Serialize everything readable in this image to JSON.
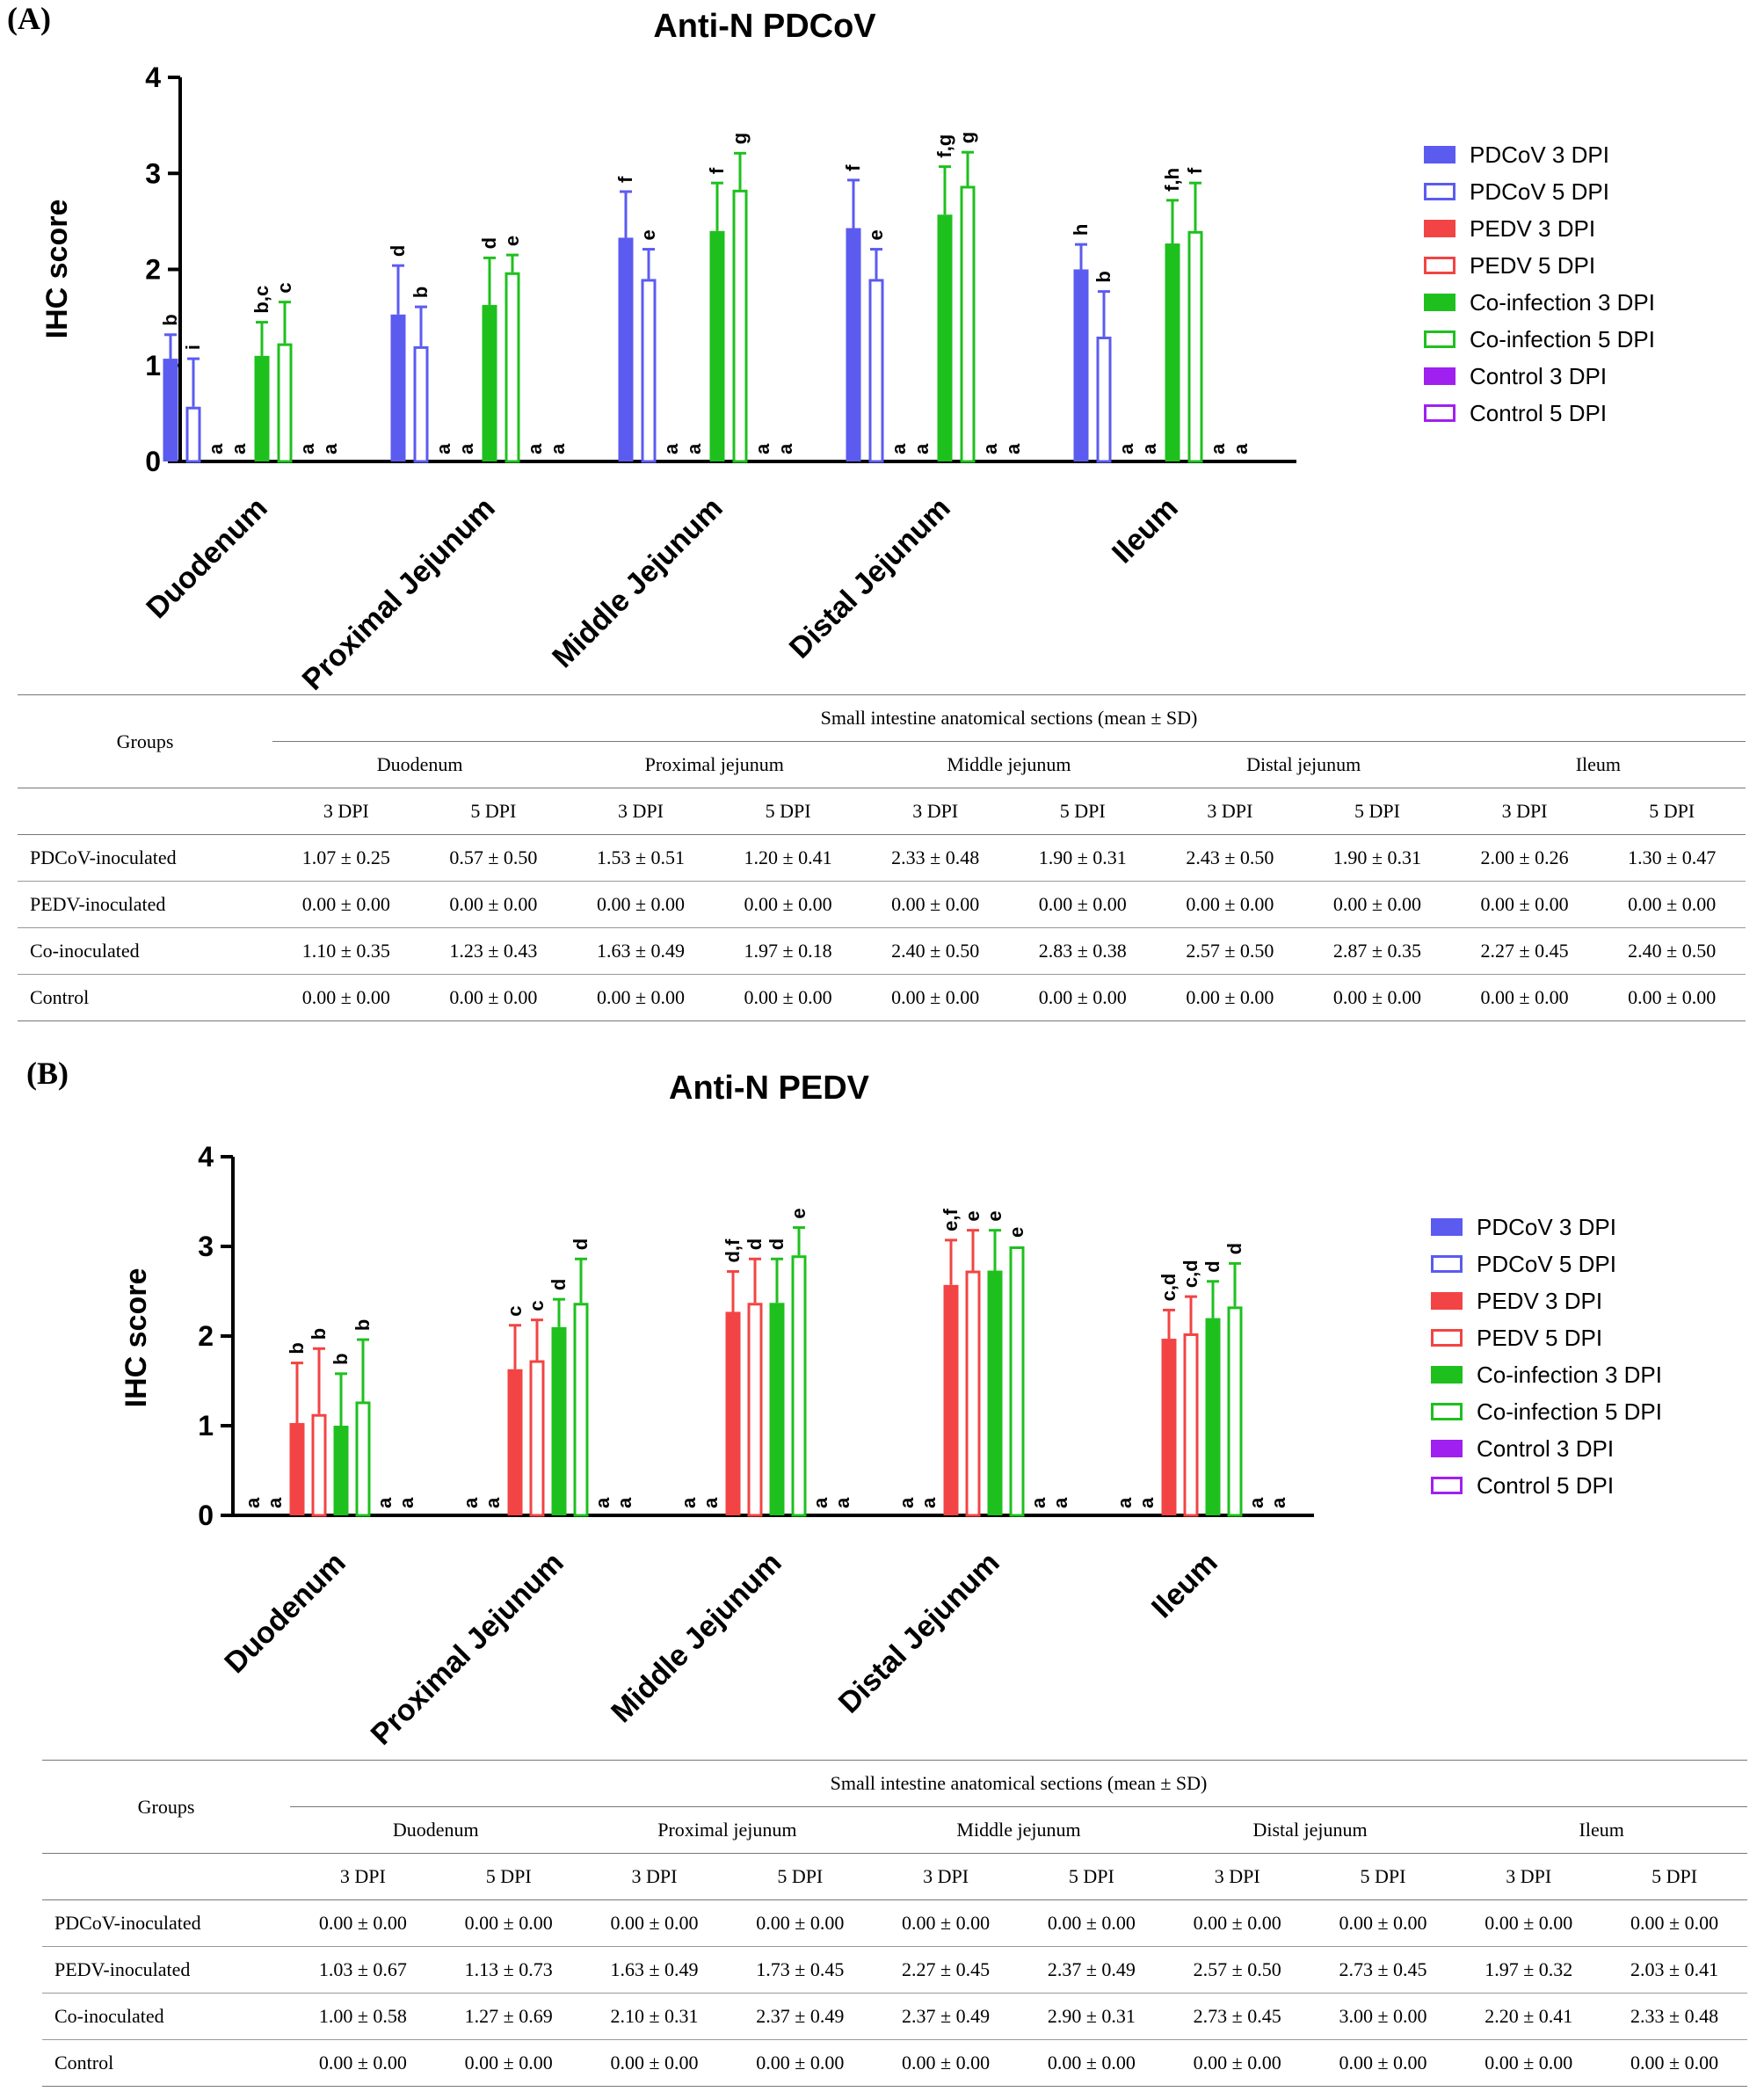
{
  "panels": [
    {
      "label": "(A)",
      "chart_data": {
        "type": "bar",
        "title": "Anti-N PDCoV",
        "ylabel": "IHC score",
        "xlabel": "",
        "ylim": [
          0,
          4
        ],
        "yticks": [
          0,
          1,
          2,
          3,
          4
        ],
        "categories": [
          "Duodenum",
          "Proximal Jejunum",
          "Middle Jejunum",
          "Distal Jejunum",
          "Ileum"
        ],
        "series": [
          {
            "name": "PDCoV 3 DPI",
            "style": "filled",
            "color": "#5b5bf0",
            "values": [
              1.07,
              1.53,
              2.33,
              2.43,
              2.0
            ],
            "sd": [
              0.25,
              0.51,
              0.48,
              0.5,
              0.26
            ],
            "letters": [
              "b",
              "d",
              "f",
              "f",
              "h"
            ]
          },
          {
            "name": "PDCoV 5 DPI",
            "style": "open",
            "color": "#5b5bf0",
            "values": [
              0.57,
              1.2,
              1.9,
              1.9,
              1.3
            ],
            "sd": [
              0.5,
              0.41,
              0.31,
              0.31,
              0.47
            ],
            "letters": [
              "i",
              "b",
              "e",
              "e",
              "b"
            ]
          },
          {
            "name": "PEDV 3 DPI",
            "style": "filled",
            "color": "#f24444",
            "values": [
              0,
              0,
              0,
              0,
              0
            ],
            "sd": [
              0,
              0,
              0,
              0,
              0
            ],
            "letters": [
              "a",
              "a",
              "a",
              "a",
              "a"
            ]
          },
          {
            "name": "PEDV 5 DPI",
            "style": "open",
            "color": "#f24444",
            "values": [
              0,
              0,
              0,
              0,
              0
            ],
            "sd": [
              0,
              0,
              0,
              0,
              0
            ],
            "letters": [
              "a",
              "a",
              "a",
              "a",
              "a"
            ]
          },
          {
            "name": "Co-infection 3 DPI",
            "style": "filled",
            "color": "#1ec01e",
            "values": [
              1.1,
              1.63,
              2.4,
              2.57,
              2.27
            ],
            "sd": [
              0.35,
              0.49,
              0.5,
              0.5,
              0.45
            ],
            "letters": [
              "b,c",
              "d",
              "f",
              "f,g",
              "f,h"
            ]
          },
          {
            "name": "Co-infection 5 DPI",
            "style": "open",
            "color": "#1ec01e",
            "values": [
              1.23,
              1.97,
              2.83,
              2.87,
              2.4
            ],
            "sd": [
              0.43,
              0.18,
              0.38,
              0.35,
              0.5
            ],
            "letters": [
              "c",
              "e",
              "g",
              "g",
              "f"
            ]
          },
          {
            "name": "Control 3 DPI",
            "style": "filled",
            "color": "#a020f0",
            "values": [
              0,
              0,
              0,
              0,
              0
            ],
            "sd": [
              0,
              0,
              0,
              0,
              0
            ],
            "letters": [
              "a",
              "a",
              "a",
              "a",
              "a"
            ]
          },
          {
            "name": "Control 5 DPI",
            "style": "open",
            "color": "#a020f0",
            "values": [
              0,
              0,
              0,
              0,
              0
            ],
            "sd": [
              0,
              0,
              0,
              0,
              0
            ],
            "letters": [
              "a",
              "a",
              "a",
              "a",
              "a"
            ]
          }
        ]
      },
      "table": {
        "header_caption": "Small intestine anatomical sections (mean ± SD)",
        "groups_label": "Groups",
        "sections": [
          "Duodenum",
          "Proximal jejunum",
          "Middle jejunum",
          "Distal jejunum",
          "Ileum"
        ],
        "dpi_labels": [
          "3 DPI",
          "5 DPI",
          "3 DPI",
          "5 DPI",
          "3 DPI",
          "5 DPI",
          "3 DPI",
          "5 DPI",
          "3 DPI",
          "5 DPI"
        ],
        "rows": [
          {
            "group": "PDCoV-inoculated",
            "cells": [
              "1.07 ± 0.25",
              "0.57 ± 0.50",
              "1.53 ± 0.51",
              "1.20 ± 0.41",
              "2.33 ± 0.48",
              "1.90 ± 0.31",
              "2.43 ± 0.50",
              "1.90 ± 0.31",
              "2.00 ± 0.26",
              "1.30 ± 0.47"
            ]
          },
          {
            "group": "PEDV-inoculated",
            "cells": [
              "0.00 ± 0.00",
              "0.00 ± 0.00",
              "0.00 ± 0.00",
              "0.00 ± 0.00",
              "0.00 ± 0.00",
              "0.00 ± 0.00",
              "0.00 ± 0.00",
              "0.00 ± 0.00",
              "0.00 ± 0.00",
              "0.00 ± 0.00"
            ]
          },
          {
            "group": "Co-inoculated",
            "cells": [
              "1.10 ± 0.35",
              "1.23 ± 0.43",
              "1.63 ± 0.49",
              "1.97 ± 0.18",
              "2.40 ± 0.50",
              "2.83 ± 0.38",
              "2.57 ± 0.50",
              "2.87 ± 0.35",
              "2.27 ± 0.45",
              "2.40 ± 0.50"
            ]
          },
          {
            "group": "Control",
            "cells": [
              "0.00 ± 0.00",
              "0.00 ± 0.00",
              "0.00 ± 0.00",
              "0.00 ± 0.00",
              "0.00 ± 0.00",
              "0.00 ± 0.00",
              "0.00 ± 0.00",
              "0.00 ± 0.00",
              "0.00 ± 0.00",
              "0.00 ± 0.00"
            ]
          }
        ]
      }
    },
    {
      "label": "(B)",
      "chart_data": {
        "type": "bar",
        "title": "Anti-N PEDV",
        "ylabel": "IHC score",
        "xlabel": "",
        "ylim": [
          0,
          4
        ],
        "yticks": [
          0,
          1,
          2,
          3,
          4
        ],
        "categories": [
          "Duodenum",
          "Proximal Jejunum",
          "Middle Jejunum",
          "Distal Jejunum",
          "Ileum"
        ],
        "series": [
          {
            "name": "PDCoV 3 DPI",
            "style": "filled",
            "color": "#5b5bf0",
            "values": [
              0,
              0,
              0,
              0,
              0
            ],
            "sd": [
              0,
              0,
              0,
              0,
              0
            ],
            "letters": [
              "a",
              "a",
              "a",
              "a",
              "a"
            ]
          },
          {
            "name": "PDCoV 5 DPI",
            "style": "open",
            "color": "#5b5bf0",
            "values": [
              0,
              0,
              0,
              0,
              0
            ],
            "sd": [
              0,
              0,
              0,
              0,
              0
            ],
            "letters": [
              "a",
              "a",
              "a",
              "a",
              "a"
            ]
          },
          {
            "name": "PEDV 3 DPI",
            "style": "filled",
            "color": "#f24444",
            "values": [
              1.03,
              1.63,
              2.27,
              2.57,
              1.97
            ],
            "sd": [
              0.67,
              0.49,
              0.45,
              0.5,
              0.32
            ],
            "letters": [
              "b",
              "c",
              "d,f",
              "e,f",
              "c,d"
            ]
          },
          {
            "name": "PEDV 5 DPI",
            "style": "open",
            "color": "#f24444",
            "values": [
              1.13,
              1.73,
              2.37,
              2.73,
              2.03
            ],
            "sd": [
              0.73,
              0.45,
              0.49,
              0.45,
              0.41
            ],
            "letters": [
              "b",
              "c",
              "d",
              "e",
              "c,d"
            ]
          },
          {
            "name": "Co-infection 3 DPI",
            "style": "filled",
            "color": "#1ec01e",
            "values": [
              1.0,
              2.1,
              2.37,
              2.73,
              2.2
            ],
            "sd": [
              0.58,
              0.31,
              0.49,
              0.45,
              0.41
            ],
            "letters": [
              "b",
              "d",
              "d",
              "e",
              "d"
            ]
          },
          {
            "name": "Co-infection 5 DPI",
            "style": "open",
            "color": "#1ec01e",
            "values": [
              1.27,
              2.37,
              2.9,
              3.0,
              2.33
            ],
            "sd": [
              0.69,
              0.49,
              0.31,
              0.0,
              0.48
            ],
            "letters": [
              "b",
              "d",
              "e",
              "e",
              "d"
            ]
          },
          {
            "name": "Control 3 DPI",
            "style": "filled",
            "color": "#a020f0",
            "values": [
              0,
              0,
              0,
              0,
              0
            ],
            "sd": [
              0,
              0,
              0,
              0,
              0
            ],
            "letters": [
              "a",
              "a",
              "a",
              "a",
              "a"
            ]
          },
          {
            "name": "Control 5 DPI",
            "style": "open",
            "color": "#a020f0",
            "values": [
              0,
              0,
              0,
              0,
              0
            ],
            "sd": [
              0,
              0,
              0,
              0,
              0
            ],
            "letters": [
              "a",
              "a",
              "a",
              "a",
              "a"
            ]
          }
        ]
      },
      "table": {
        "header_caption": "Small intestine anatomical sections (mean ± SD)",
        "groups_label": "Groups",
        "sections": [
          "Duodenum",
          "Proximal jejunum",
          "Middle jejunum",
          "Distal jejunum",
          "Ileum"
        ],
        "dpi_labels": [
          "3 DPI",
          "5 DPI",
          "3 DPI",
          "5 DPI",
          "3 DPI",
          "5 DPI",
          "3 DPI",
          "5 DPI",
          "3 DPI",
          "5 DPI"
        ],
        "rows": [
          {
            "group": "PDCoV-inoculated",
            "cells": [
              "0.00 ± 0.00",
              "0.00 ± 0.00",
              "0.00 ± 0.00",
              "0.00 ± 0.00",
              "0.00 ± 0.00",
              "0.00 ± 0.00",
              "0.00 ± 0.00",
              "0.00 ± 0.00",
              "0.00 ± 0.00",
              "0.00 ± 0.00"
            ]
          },
          {
            "group": "PEDV-inoculated",
            "cells": [
              "1.03 ± 0.67",
              "1.13 ± 0.73",
              "1.63 ± 0.49",
              "1.73 ± 0.45",
              "2.27 ± 0.45",
              "2.37 ± 0.49",
              "2.57 ± 0.50",
              "2.73 ± 0.45",
              "1.97 ± 0.32",
              "2.03 ± 0.41"
            ]
          },
          {
            "group": "Co-inoculated",
            "cells": [
              "1.00 ± 0.58",
              "1.27 ± 0.69",
              "2.10 ± 0.31",
              "2.37 ± 0.49",
              "2.37 ± 0.49",
              "2.90 ± 0.31",
              "2.73 ± 0.45",
              "3.00 ± 0.00",
              "2.20 ± 0.41",
              "2.33 ± 0.48"
            ]
          },
          {
            "group": "Control",
            "cells": [
              "0.00 ± 0.00",
              "0.00 ± 0.00",
              "0.00 ± 0.00",
              "0.00 ± 0.00",
              "0.00 ± 0.00",
              "0.00 ± 0.00",
              "0.00 ± 0.00",
              "0.00 ± 0.00",
              "0.00 ± 0.00",
              "0.00 ± 0.00"
            ]
          }
        ]
      }
    }
  ]
}
